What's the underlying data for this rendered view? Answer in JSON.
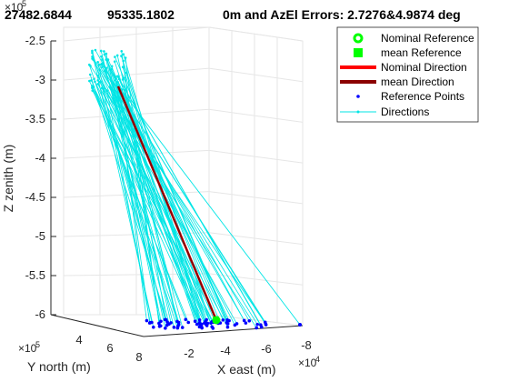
{
  "chart_data": {
    "type": "line",
    "title": "0m and AzEl Errors: 2.7276&4.9874 deg",
    "title_overlay": [
      "27482.6844",
      "95335.1802"
    ],
    "grid": true,
    "x": {
      "label": "X east (m)",
      "exponent": "×10",
      "exponent_power": "4",
      "range": [
        0,
        -80000
      ],
      "ticks": [
        0,
        -20000,
        -40000,
        -60000,
        -80000
      ],
      "tick_labels": [
        "",
        "-2",
        "-4",
        "-6",
        "-8"
      ]
    },
    "y": {
      "label": "Y north (m)",
      "exponent": "×10",
      "exponent_power": "5",
      "range": [
        200000,
        800000
      ],
      "ticks": [
        400000,
        600000,
        800000
      ],
      "tick_labels": [
        "4",
        "6",
        "8"
      ]
    },
    "z": {
      "label": "Z zenith (m)",
      "exponent": "×10",
      "exponent_power": "5",
      "range": [
        -6,
        -2.5
      ],
      "ticks": [
        -6,
        -5.5,
        -5,
        -4.5,
        -4,
        -3.5,
        -3,
        -2.5
      ],
      "tick_labels": [
        "-6",
        "-5.5",
        "-5",
        "-4.5",
        "-4",
        "-3.5",
        "-3",
        "-2.5"
      ]
    },
    "legend": {
      "placement": "top-right",
      "entries": [
        {
          "label": "Nominal Reference",
          "marker": "circle",
          "color": "#00ff00"
        },
        {
          "label": "mean Reference",
          "marker": "square",
          "color": "#00ff00"
        },
        {
          "label": "Nominal Direction",
          "marker": "line-thick",
          "color": "#ff0000"
        },
        {
          "label": "mean Direction",
          "marker": "line-thick",
          "color": "#8b0000"
        },
        {
          "label": "Reference Points",
          "marker": "dot",
          "color": "#0000ff"
        },
        {
          "label": "Directions",
          "marker": "line-dot",
          "color": "#00e5e5"
        }
      ]
    },
    "series": [
      {
        "name": "Nominal Reference",
        "points": [
          [
            -40000,
            420000,
            -6
          ]
        ]
      },
      {
        "name": "mean Reference",
        "points": [
          [
            -40000,
            420000,
            -6
          ]
        ]
      },
      {
        "name": "Nominal Direction",
        "points": [
          [
            -40000,
            420000,
            -6
          ],
          [
            -55000,
            720000,
            -3.1
          ]
        ]
      },
      {
        "name": "mean Direction",
        "points": [
          [
            -40000,
            420000,
            -6
          ],
          [
            -55000,
            720000,
            -3.1
          ]
        ]
      },
      {
        "name": "Reference Points",
        "count": 70,
        "approx_z": -6
      },
      {
        "name": "Directions",
        "count": 70,
        "approx_tip_z_range": [
          -3.3,
          -2.6
        ]
      }
    ],
    "colors": {
      "directions": "#00e5e5",
      "reference_points": "#0000ff",
      "nominal_ref": "#00ff00",
      "nominal_dir": "#ff0000",
      "mean_dir": "#8b0000",
      "axis": "#262626",
      "grid": "#e6e6e6"
    }
  }
}
